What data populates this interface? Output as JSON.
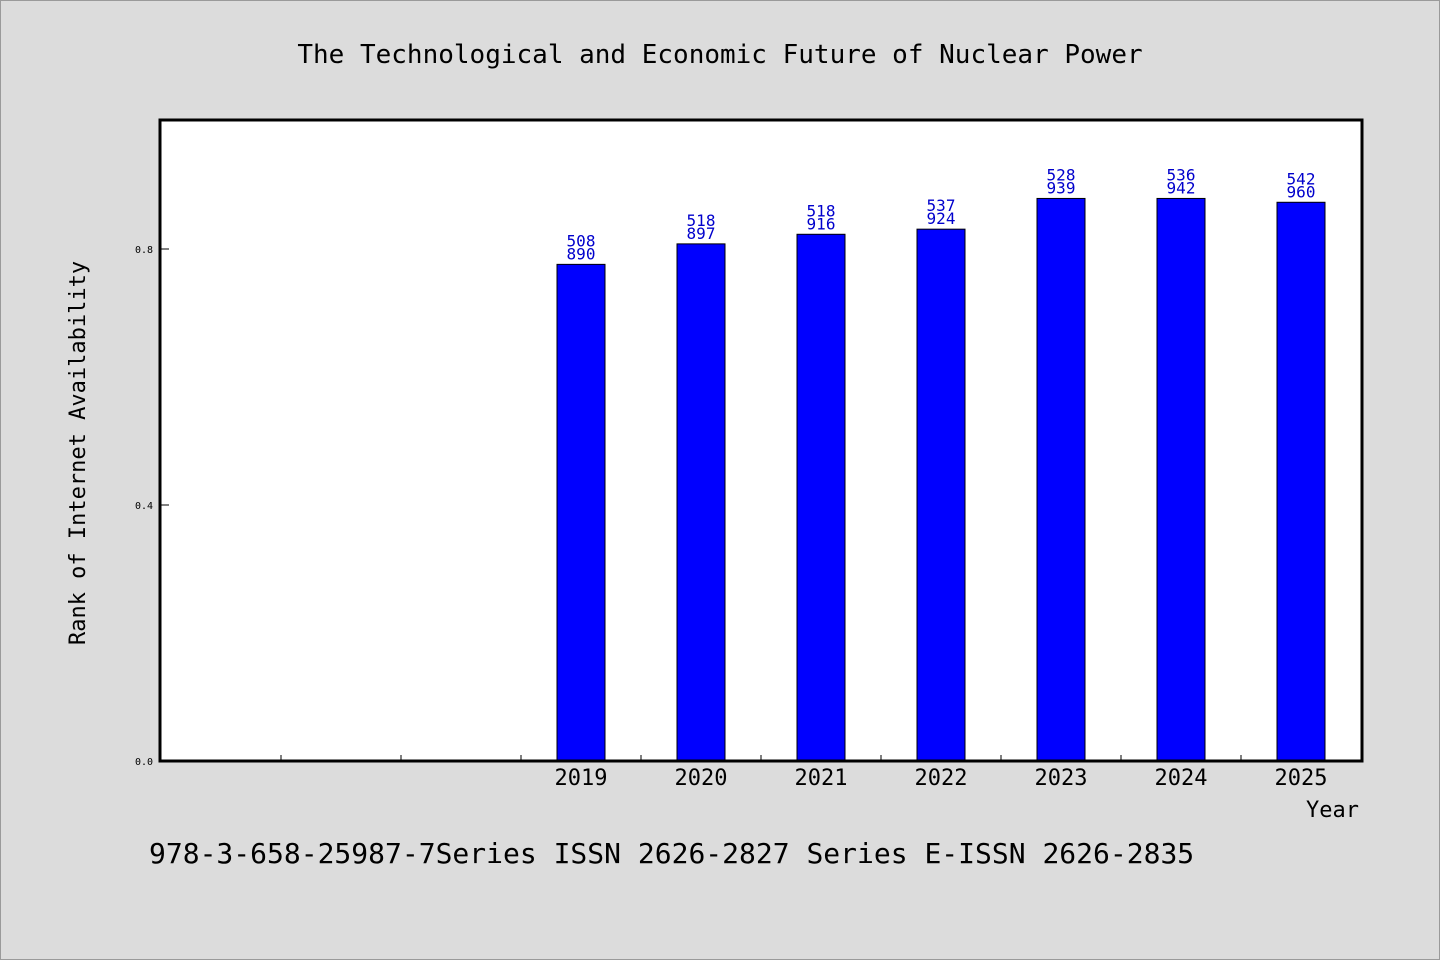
{
  "chart_data": {
    "type": "bar",
    "title": "The Technological and Economic Future of Nuclear Power",
    "ylabel": "Rank of Internet Availability",
    "xlabel": "Year",
    "categories": [
      "",
      "",
      "",
      "2019",
      "2020",
      "2021",
      "2022",
      "2023",
      "2024",
      "2025"
    ],
    "values": [
      null,
      null,
      null,
      0.776,
      0.808,
      0.823,
      0.831,
      0.879,
      0.879,
      0.873
    ],
    "data_labels": [
      null,
      null,
      null,
      [
        "508",
        "890"
      ],
      [
        "518",
        "897"
      ],
      [
        "518",
        "916"
      ],
      [
        "537",
        "924"
      ],
      [
        "528",
        "939"
      ],
      [
        "536",
        "942"
      ],
      [
        "542",
        "960"
      ]
    ],
    "yticks": [
      "0.0",
      "0.4",
      "0.8"
    ],
    "ytick_values": [
      0.0,
      0.4,
      0.8
    ],
    "ylim": [
      0,
      1.0
    ],
    "grid": false,
    "bar_color": "#0000ff",
    "label_color": "#0000cc"
  },
  "footer": "978-3-658-25987-7Series ISSN 2626-2827 Series E-ISSN 2626-2835"
}
